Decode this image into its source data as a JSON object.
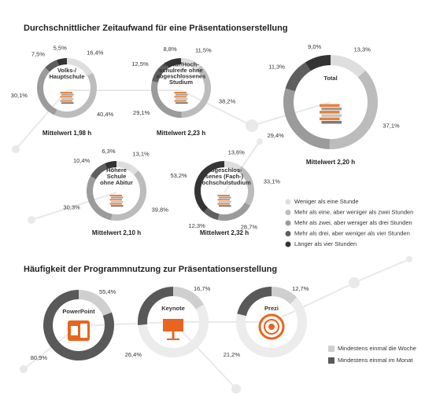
{
  "time_section": {
    "title": "Durchschnittlicher Zeitaufwand für eine Präsentationserstellung",
    "categories": [
      "Weniger als eine Stunde",
      "Mehr als eine, aber weniger als zwei Stunden",
      "Mehr als zwei, aber weniger als drei Stunden",
      "Mehr als drei, aber weniger als vier Stunden",
      "Länger als vier Stunden"
    ],
    "colors": [
      "#dedede",
      "#bcbcbc",
      "#9b9b9b",
      "#5f5f5f",
      "#343434"
    ],
    "charts": [
      {
        "type": "donut",
        "label_lines": [
          "Volks-/",
          "Hauptschule"
        ],
        "values": [
          16.4,
          40.4,
          30.1,
          7.5,
          5.5
        ],
        "value_labels": [
          "16,4%",
          "40,4%",
          "30,1%",
          "7,5%",
          "5,5%"
        ],
        "mean_label": "Mittelwert 1,98 h"
      },
      {
        "type": "donut",
        "label_lines": [
          "Abitur/Hoch-",
          "schulreife ohne",
          "abgeschlossenes",
          "Studium"
        ],
        "values": [
          11.5,
          38.2,
          29.1,
          12.5,
          8.8
        ],
        "value_labels": [
          "11,5%",
          "38,2%",
          "29,1%",
          "12,5%",
          "8,8%"
        ],
        "mean_label": "Mittelwert 2,23 h"
      },
      {
        "type": "donut",
        "label_lines": [
          "Total"
        ],
        "values": [
          13.3,
          37.1,
          29.4,
          11.3,
          9.0
        ],
        "value_labels": [
          "13,3%",
          "37,1%",
          "29,4%",
          "11,3%",
          "9,0%"
        ],
        "mean_label": "Mittelwert 2,20 h"
      },
      {
        "type": "donut",
        "label_lines": [
          "Höhere",
          "Schule",
          "ohne Abitur"
        ],
        "values": [
          13.1,
          39.8,
          30.3,
          10.4,
          6.3
        ],
        "value_labels": [
          "13,1%",
          "39,8%",
          "30,3%",
          "10,4%",
          "6,3%"
        ],
        "mean_label": "Mittelwert 2,10 h"
      },
      {
        "type": "donut",
        "label_lines": [
          "Abgeschlos-",
          "senes (Fach-)",
          "Hochschulstudium"
        ],
        "values": [
          13.6,
          33.1,
          28.7,
          12.3,
          53.2
        ],
        "value_labels": [
          "13,6%",
          "33,1%",
          "28,7%",
          "12,3%",
          "53,2%"
        ],
        "mean_label": "Mittelwert 2,32 h"
      }
    ]
  },
  "usage_section": {
    "title": "Häufigkeit der Programmnutzung zur Präsentationserstellung",
    "categories": [
      "Mindestens einmal die Woche",
      "Mindestens einmal im Monat"
    ],
    "colors": [
      "#cfcfcf",
      "#595959"
    ],
    "charts": [
      {
        "type": "overlap-donut",
        "label": "PowerPoint",
        "values": [
          55.4,
          80.9
        ],
        "value_labels": [
          "55,4%",
          "80,9%"
        ]
      },
      {
        "type": "overlap-donut",
        "label": "Keynote",
        "values": [
          16.7,
          26.4
        ],
        "value_labels": [
          "16,7%",
          "26,4%"
        ]
      },
      {
        "type": "overlap-donut",
        "label": "Prezi",
        "values": [
          12.7,
          21.2
        ],
        "value_labels": [
          "12,7%",
          "21,2%"
        ]
      }
    ]
  }
}
